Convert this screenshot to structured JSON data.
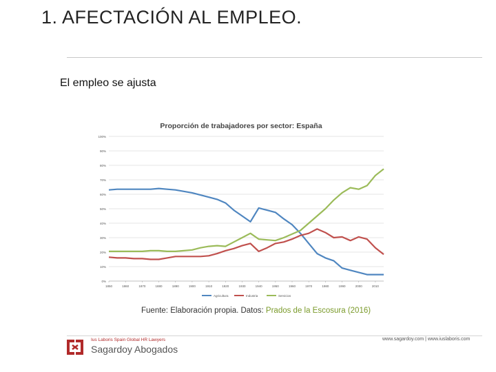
{
  "slide": {
    "title": "1. AFECTACIÓN AL EMPLEO.",
    "subtitle": "El empleo se ajusta",
    "source_prefix": "Fuente: Elaboración propia. Datos: ",
    "source_highlight": "Prados de la Escosura (2016)"
  },
  "footer": {
    "tagline": "Ius Laboris Spain Global HR Lawyers",
    "brand": "Sagardoy Abogados",
    "web": "www.sagardoy.com  |  www.iuslaboris.com"
  },
  "colors": {
    "agricultura": "#4f86c0",
    "industria": "#c0504d",
    "servicios": "#9bbb59",
    "accent": "#b12a2a"
  },
  "chart_data": {
    "type": "line",
    "title": "Proporción de trabajadores por sector: España",
    "xlabel": "",
    "ylabel": "",
    "xlim": [
      1850,
      2015
    ],
    "ylim": [
      0,
      100
    ],
    "x_ticks": [
      1850,
      1860,
      1870,
      1880,
      1890,
      1900,
      1910,
      1920,
      1930,
      1940,
      1950,
      1960,
      1970,
      1980,
      1990,
      2000,
      2010
    ],
    "y_ticks": [
      "0%",
      "10%",
      "20%",
      "30%",
      "40%",
      "50%",
      "60%",
      "70%",
      "80%",
      "90%",
      "100%"
    ],
    "y_tick_values": [
      0,
      10,
      20,
      30,
      40,
      50,
      60,
      70,
      80,
      90,
      100
    ],
    "grid": true,
    "legend": "bottom",
    "series": [
      {
        "name": "Agricultura",
        "x": [
          1850,
          1855,
          1860,
          1865,
          1870,
          1875,
          1880,
          1885,
          1890,
          1895,
          1900,
          1905,
          1910,
          1915,
          1920,
          1925,
          1930,
          1935,
          1940,
          1945,
          1950,
          1955,
          1960,
          1965,
          1970,
          1975,
          1980,
          1985,
          1990,
          1995,
          2000,
          2005,
          2010,
          2015
        ],
        "values": [
          63,
          63.5,
          63.5,
          63.5,
          63.5,
          63.5,
          64,
          63.5,
          63,
          62,
          61,
          59.5,
          58,
          56.5,
          54,
          49,
          45,
          41,
          50.5,
          49,
          47.5,
          43,
          39,
          33,
          26,
          19,
          16,
          14,
          9,
          7.5,
          6,
          4.5,
          4.5,
          4.5
        ]
      },
      {
        "name": "Industria",
        "x": [
          1850,
          1855,
          1860,
          1865,
          1870,
          1875,
          1880,
          1885,
          1890,
          1895,
          1900,
          1905,
          1910,
          1915,
          1920,
          1925,
          1930,
          1935,
          1940,
          1945,
          1950,
          1955,
          1960,
          1965,
          1970,
          1975,
          1980,
          1985,
          1990,
          1995,
          2000,
          2005,
          2010,
          2015
        ],
        "values": [
          16.5,
          16,
          16,
          15.5,
          15.5,
          15,
          15,
          16,
          17,
          17,
          17,
          17,
          17.5,
          19,
          21,
          22.5,
          24.5,
          26,
          20.5,
          23,
          26,
          27,
          29,
          31.5,
          33,
          36,
          33.5,
          30,
          30.5,
          28,
          30.5,
          29,
          23,
          18.5
        ]
      },
      {
        "name": "Servicios",
        "x": [
          1850,
          1855,
          1860,
          1865,
          1870,
          1875,
          1880,
          1885,
          1890,
          1895,
          1900,
          1905,
          1910,
          1915,
          1920,
          1925,
          1930,
          1935,
          1940,
          1945,
          1950,
          1955,
          1960,
          1965,
          1970,
          1975,
          1980,
          1985,
          1990,
          1995,
          2000,
          2005,
          2010,
          2015
        ],
        "values": [
          20.5,
          20.5,
          20.5,
          20.5,
          20.5,
          21,
          21,
          20.5,
          20.5,
          21,
          21.5,
          23,
          24,
          24.5,
          24,
          27,
          30,
          33,
          29,
          28.5,
          28,
          30,
          32.5,
          35,
          40,
          45,
          50,
          56,
          61,
          64.5,
          63.5,
          66,
          73,
          77.5
        ]
      }
    ]
  }
}
